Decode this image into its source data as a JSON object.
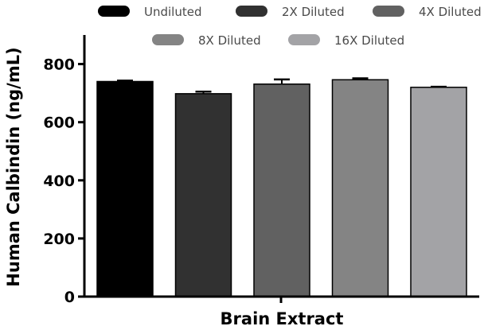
{
  "chart_data": {
    "type": "bar",
    "xlabel": "Brain Extract",
    "ylabel": "Human Calbindin (ng/mL)",
    "ylim": [
      0,
      900
    ],
    "yticks": [
      0,
      200,
      400,
      600,
      800
    ],
    "grid": false,
    "legend_position": "top",
    "series": [
      {
        "name": "Undiluted",
        "value": 740,
        "error": 3,
        "color": "#000000"
      },
      {
        "name": "2X Diluted",
        "value": 698,
        "error": 7,
        "color": "#313131"
      },
      {
        "name": "4X Diluted",
        "value": 731,
        "error": 16,
        "color": "#616161"
      },
      {
        "name": "8X Diluted",
        "value": 746,
        "error": 5,
        "color": "#848484"
      },
      {
        "name": "16X Diluted",
        "value": 720,
        "error": 2,
        "color": "#a3a3a6"
      }
    ]
  }
}
